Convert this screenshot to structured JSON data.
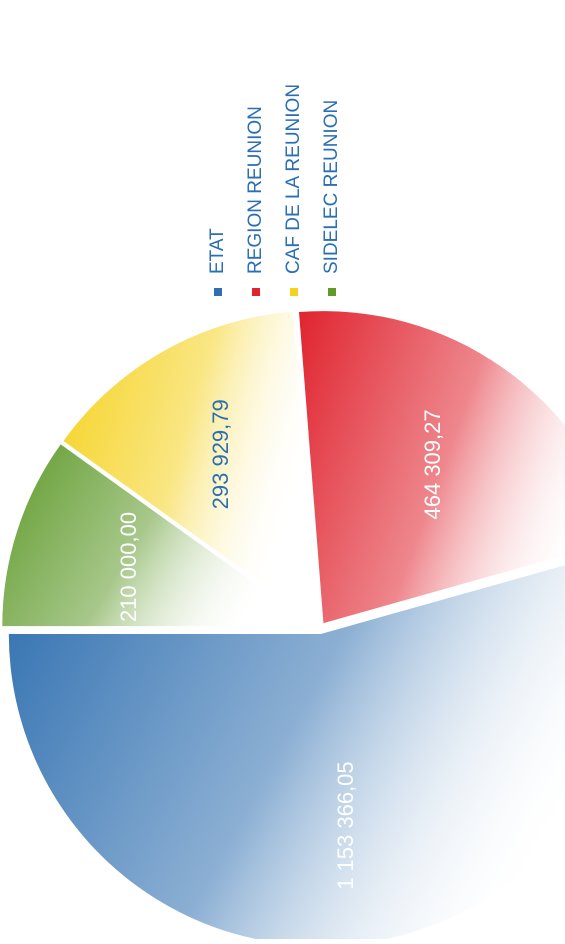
{
  "chart_data": {
    "type": "pie",
    "title": "",
    "series": [
      {
        "name": "ETAT",
        "value": 1153366.05,
        "value_label": "1 153 366,05",
        "color": "#2f6fb0"
      },
      {
        "name": "REGION REUNION",
        "value": 464309.27,
        "value_label": "464 309,27",
        "color": "#e0242f"
      },
      {
        "name": "CAF DE LA REUNION",
        "value": 293929.79,
        "value_label": "293 929,79",
        "color": "#f5d21f"
      },
      {
        "name": "SIDELEC REUNION",
        "value": 210000.0,
        "value_label": "210 000,00",
        "color": "#5f9a2b"
      }
    ],
    "legend_position": "top-right",
    "orientation": "rotated 90 degrees counter-clockwise"
  }
}
